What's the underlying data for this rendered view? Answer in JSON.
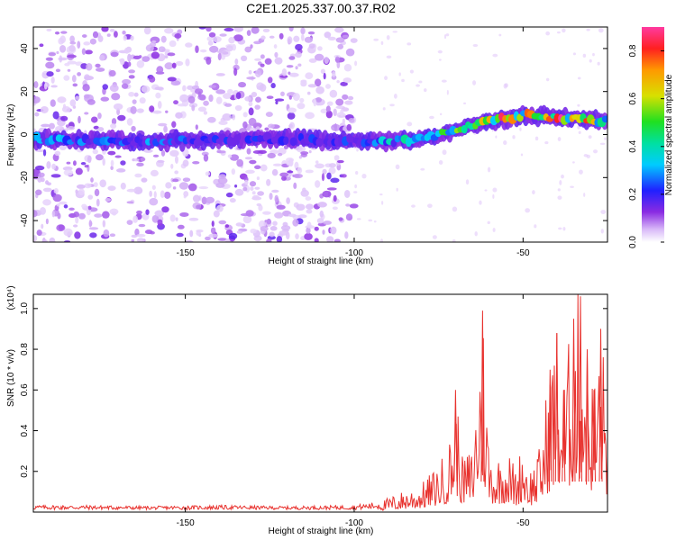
{
  "title": "C2E1.2025.337.00.37.R02",
  "chart_data": [
    {
      "type": "heatmap",
      "title": "C2E1.2025.337.00.37.R02",
      "xlabel": "Height of straight line (km)",
      "ylabel": "Frequency (Hz)",
      "xlim": [
        -195,
        -25
      ],
      "ylim": [
        -50,
        50
      ],
      "xticks": [
        -150,
        -100,
        -50
      ],
      "xtick_labels": [
        "-150",
        "-100",
        "-50"
      ],
      "yticks": [
        -40,
        -20,
        0,
        20,
        40
      ],
      "ytick_labels": [
        "-40",
        "-20",
        "0",
        "20",
        "40"
      ],
      "colorbar": {
        "label": "Normalized spectral amplitude",
        "range": [
          0,
          0.9
        ],
        "ticks": [
          0,
          0.2,
          0.4,
          0.6,
          0.8
        ],
        "tick_labels": [
          "0.0",
          "0.2",
          "0.4",
          "0.6",
          "0.8"
        ]
      },
      "ridge": {
        "description_points_x_km": [
          -195,
          -160,
          -120,
          -100,
          -90,
          -80,
          -70,
          -60,
          -50,
          -40,
          -30,
          -26
        ],
        "frequency_hz": [
          -2,
          -3,
          -2,
          -3,
          -3,
          -2,
          2,
          6,
          9,
          8,
          7,
          6
        ],
        "normalized_amplitude": [
          0.35,
          0.3,
          0.2,
          0.25,
          0.4,
          0.5,
          0.6,
          0.85,
          0.7,
          0.85,
          0.8,
          0.7
        ]
      },
      "noise_region_x_km": [
        -195,
        -100
      ]
    },
    {
      "type": "line",
      "xlabel": "Height of straight line (km)",
      "ylabel": "SNR (10 * v/v)",
      "yscale_label": "(x10⁴)",
      "xlim": [
        -195,
        -25
      ],
      "ylim": [
        0,
        1.07
      ],
      "xticks": [
        -150,
        -100,
        -50
      ],
      "xtick_labels": [
        "-150",
        "-100",
        "-50"
      ],
      "yticks": [
        0.2,
        0.4,
        0.6,
        0.8,
        1.0
      ],
      "ytick_labels": [
        "0.2",
        "0.4",
        "0.6",
        "0.8",
        "1.0"
      ],
      "series": [
        {
          "name": "SNR",
          "color": "#e8322e",
          "x": [
            -195,
            -180,
            -160,
            -140,
            -120,
            -100,
            -92,
            -88,
            -85,
            -80,
            -76,
            -72,
            -70,
            -68,
            -65,
            -62,
            -60,
            -58,
            -55,
            -52,
            -50,
            -48,
            -45,
            -42,
            -40,
            -38,
            -35,
            -33,
            -31,
            -29,
            -27,
            -25
          ],
          "y": [
            0.03,
            0.03,
            0.025,
            0.03,
            0.025,
            0.03,
            0.05,
            0.08,
            0.1,
            0.13,
            0.2,
            0.3,
            0.6,
            0.25,
            0.3,
            0.99,
            0.3,
            0.25,
            0.3,
            0.2,
            0.35,
            0.2,
            0.3,
            0.7,
            0.88,
            0.6,
            0.95,
            1.06,
            0.8,
            0.6,
            0.9,
            0.5
          ]
        }
      ]
    }
  ]
}
